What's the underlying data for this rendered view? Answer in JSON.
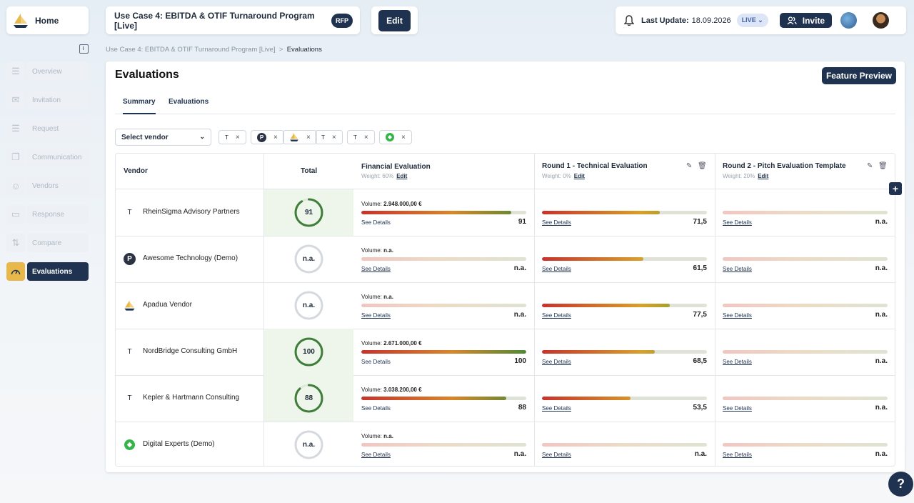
{
  "header": {
    "home_label": "Home",
    "project_title": "Use Case 4: EBITDA & OTIF Turnaround Program [Live]",
    "rfp_badge": "RFP",
    "edit_label": "Edit",
    "last_update_label": "Last Update:",
    "last_update_value": "18.09.2026",
    "live_label": "LIVE",
    "invite_label": "Invite"
  },
  "sidebar": {
    "items": [
      {
        "label": "Overview",
        "icon": "document-icon"
      },
      {
        "label": "Invitation",
        "icon": "mail-icon"
      },
      {
        "label": "Request",
        "icon": "document-icon"
      },
      {
        "label": "Communication",
        "icon": "chat-icon"
      },
      {
        "label": "Vendors",
        "icon": "users-icon"
      },
      {
        "label": "Response",
        "icon": "message-icon"
      },
      {
        "label": "Compare",
        "icon": "compare-icon"
      },
      {
        "label": "Evaluations",
        "icon": "gauge-icon",
        "active": true
      }
    ]
  },
  "breadcrumb": {
    "parent": "Use Case 4: EBITDA & OTIF Turnaround Program [Live]",
    "separator": ">",
    "current": "Evaluations"
  },
  "main": {
    "title": "Evaluations",
    "feature_preview": "Feature Preview",
    "tabs": [
      "Summary",
      "Evaluations"
    ],
    "select_vendor": "Select vendor",
    "chips": [
      "T",
      "P",
      "",
      "T",
      "T",
      ""
    ],
    "table": {
      "col_vendor": "Vendor",
      "col_total": "Total",
      "evaluations": [
        {
          "name": "Financial Evaluation",
          "weight": "Weight: 60%",
          "edit": "Edit"
        },
        {
          "name": "Round 1 - Technical Evaluation",
          "weight": "Weight: 0%",
          "edit": "Edit"
        },
        {
          "name": "Round 2 - Pitch Evaluation Template",
          "weight": "Weight: 20%",
          "edit": "Edit"
        }
      ],
      "see_details": "See Details",
      "rows": [
        {
          "vendor": "RheinSigma Advisory Partners",
          "logo": "T",
          "total": "91",
          "total_pct": 0.91,
          "fin_volume_label": "Volume:",
          "fin_volume": "2.948.000,00 €",
          "fin_value": "91",
          "fin_pct": 0.91,
          "r1_value": "71,5",
          "r1_pct": 0.715,
          "r2_value": "n.a.",
          "r2_pct": 0
        },
        {
          "vendor": "Awesome Technology (Demo)",
          "logo": "P",
          "total": "n.a.",
          "total_pct": 0,
          "fin_volume_label": "Volume:",
          "fin_volume": "n.a.",
          "fin_value": "n.a.",
          "fin_pct": 0,
          "r1_value": "61,5",
          "r1_pct": 0.615,
          "r2_value": "n.a.",
          "r2_pct": 0
        },
        {
          "vendor": "Apadua Vendor",
          "logo": "",
          "total": "n.a.",
          "total_pct": 0,
          "fin_volume_label": "Volume:",
          "fin_volume": "n.a.",
          "fin_value": "n.a.",
          "fin_pct": 0,
          "r1_value": "77,5",
          "r1_pct": 0.775,
          "r2_value": "n.a.",
          "r2_pct": 0
        },
        {
          "vendor": "NordBridge Consulting GmbH",
          "logo": "T",
          "total": "100",
          "total_pct": 1.0,
          "fin_volume_label": "Volume:",
          "fin_volume": "2.671.000,00 €",
          "fin_value": "100",
          "fin_pct": 1.0,
          "r1_value": "68,5",
          "r1_pct": 0.685,
          "r2_value": "n.a.",
          "r2_pct": 0
        },
        {
          "vendor": "Kepler & Hartmann Consulting",
          "logo": "T",
          "total": "88",
          "total_pct": 0.88,
          "fin_volume_label": "Volume:",
          "fin_volume": "3.038.200,00 €",
          "fin_value": "88",
          "fin_pct": 0.88,
          "r1_value": "53,5",
          "r1_pct": 0.535,
          "r2_value": "n.a.",
          "r2_pct": 0
        },
        {
          "vendor": "Digital Experts (Demo)",
          "logo": "",
          "total": "n.a.",
          "total_pct": 0,
          "fin_volume_label": "Volume:",
          "fin_volume": "n.a.",
          "fin_value": "n.a.",
          "fin_pct": 0,
          "r1_value": "n.a.",
          "r1_pct": 0,
          "r2_value": "n.a.",
          "r2_pct": 0
        }
      ]
    }
  },
  "colors": {
    "brand_dark": "#1f3350",
    "accent_yellow": "#e8b84a",
    "ring_green": "#3f7d3a",
    "ring_na": "#d5d9de",
    "highlight_bg": "#eef5ea"
  }
}
